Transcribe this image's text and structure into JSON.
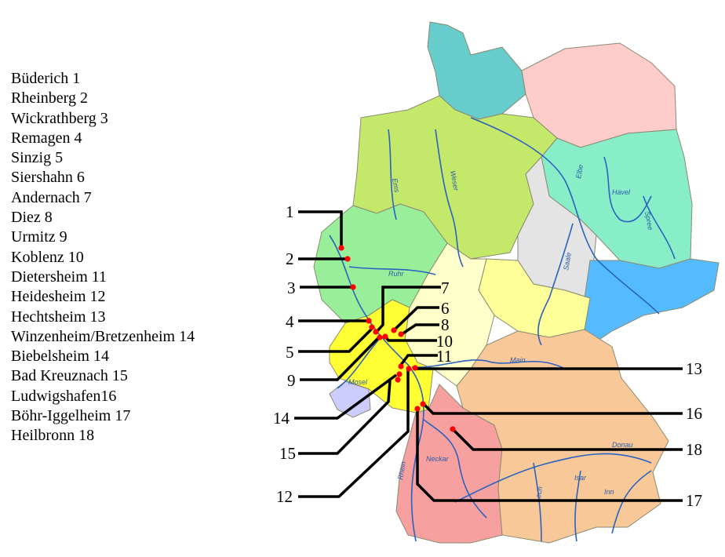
{
  "legend": [
    {
      "name": "Büderich",
      "number": "1",
      "text": "Büderich 1"
    },
    {
      "name": "Rheinberg",
      "number": "2",
      "text": "Rheinberg 2"
    },
    {
      "name": "Wickrathberg",
      "number": "3",
      "text": "Wickrathberg 3"
    },
    {
      "name": "Remagen",
      "number": "4",
      "text": "Remagen 4"
    },
    {
      "name": "Sinzig",
      "number": "5",
      "text": "Sinzig 5"
    },
    {
      "name": "Siershahn",
      "number": "6",
      "text": "Siershahn 6"
    },
    {
      "name": "Andernach",
      "number": "7",
      "text": "Andernach 7"
    },
    {
      "name": "Diez",
      "number": "8",
      "text": "Diez 8"
    },
    {
      "name": "Urmitz",
      "number": "9",
      "text": "Urmitz 9"
    },
    {
      "name": "Koblenz",
      "number": "10",
      "text": "Koblenz 10"
    },
    {
      "name": "Dietersheim",
      "number": "11",
      "text": "Dietersheim 11"
    },
    {
      "name": "Heidesheim",
      "number": "12",
      "text": "Heidesheim 12"
    },
    {
      "name": "Hechtsheim",
      "number": "13",
      "text": "Hechtsheim 13"
    },
    {
      "name": "Winzenheim/Bretzenheim",
      "number": "14",
      "text": "Winzenheim/Bretzenheim 14"
    },
    {
      "name": "Biebelsheim",
      "number": "14",
      "text": "Biebelsheim 14"
    },
    {
      "name": "Bad Kreuznach",
      "number": "15",
      "text": "Bad Kreuznach 15"
    },
    {
      "name": "Ludwigshafen",
      "number": "16",
      "text": "Ludwigshafen16"
    },
    {
      "name": "Böhr-Iggelheim",
      "number": "17",
      "text": "Böhr-Iggelheim 17"
    },
    {
      "name": "Heilbronn",
      "number": "18",
      "text": "Heilbronn 18"
    }
  ],
  "markers": [
    "1",
    "2",
    "3",
    "4",
    "5",
    "6",
    "7",
    "8",
    "9",
    "10",
    "11",
    "12",
    "13",
    "14",
    "15",
    "16",
    "17",
    "18"
  ],
  "rivers": [
    "Ems",
    "Weser",
    "Elbe",
    "Havel",
    "Spree",
    "Saale",
    "Ruhr",
    "Mosel",
    "Main",
    "Donau",
    "Neckar",
    "Rhein",
    "Lech",
    "Isar",
    "Inn"
  ],
  "colors": {
    "marker": "#ff0000",
    "leader_line": "#000000",
    "river": "#2a62c0",
    "schleswig_holstein": "#66cccc",
    "mecklenburg": "#ffcccc",
    "lower_saxony": "#c4e86a",
    "brandenburg": "#88eec8",
    "saxony_anhalt": "#e4e4e4",
    "saxony": "#55bbff",
    "thuringia": "#ffff99",
    "hesse": "#ffffcc",
    "nrw": "#99ee99",
    "rhineland_palatinate": "#ffff33",
    "saarland": "#ccccff",
    "baden_wuerttemberg": "#f7a0a0",
    "bavaria": "#f8c898"
  }
}
